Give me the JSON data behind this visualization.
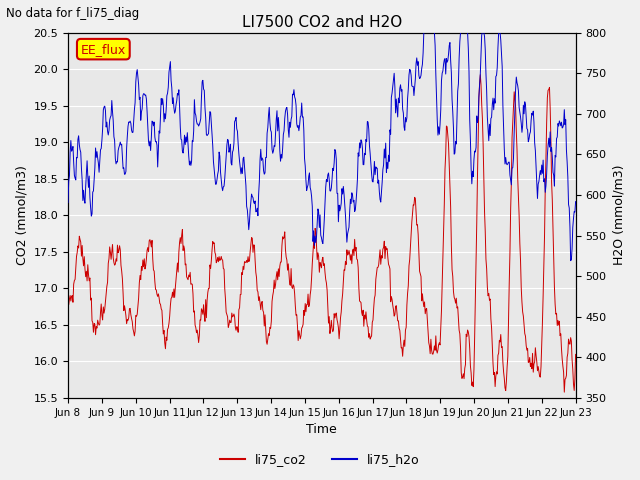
{
  "title": "LI7500 CO2 and H2O",
  "suptitle": "No data for f_li75_diag",
  "xlabel": "Time",
  "ylabel_left": "CO2 (mmol/m3)",
  "ylabel_right": "H2O (mmol/m3)",
  "ylim_left": [
    15.5,
    20.5
  ],
  "ylim_right": [
    350,
    800
  ],
  "yticks_left": [
    15.5,
    16.0,
    16.5,
    17.0,
    17.5,
    18.0,
    18.5,
    19.0,
    19.5,
    20.0,
    20.5
  ],
  "yticks_right": [
    350,
    400,
    450,
    500,
    550,
    600,
    650,
    700,
    750,
    800
  ],
  "xtick_labels": [
    "Jun 8",
    "Jun 9",
    "Jun 10",
    "Jun 11",
    "Jun 12",
    "Jun 13",
    "Jun 14",
    "Jun 15",
    "Jun 16",
    "Jun 17",
    "Jun 18",
    "Jun 19",
    "Jun 20",
    "Jun 21",
    "Jun 22",
    "Jun 23"
  ],
  "legend_label_co2": "li75_co2",
  "legend_label_h2o": "li75_h2o",
  "color_co2": "#cc0000",
  "color_h2o": "#0000cc",
  "annotation_box": "EE_flux",
  "annotation_box_facecolor": "#ffff00",
  "annotation_box_edgecolor": "#cc0000",
  "background_color": "#e8e8e8",
  "grid_color": "#ffffff",
  "fig_facecolor": "#f0f0f0"
}
